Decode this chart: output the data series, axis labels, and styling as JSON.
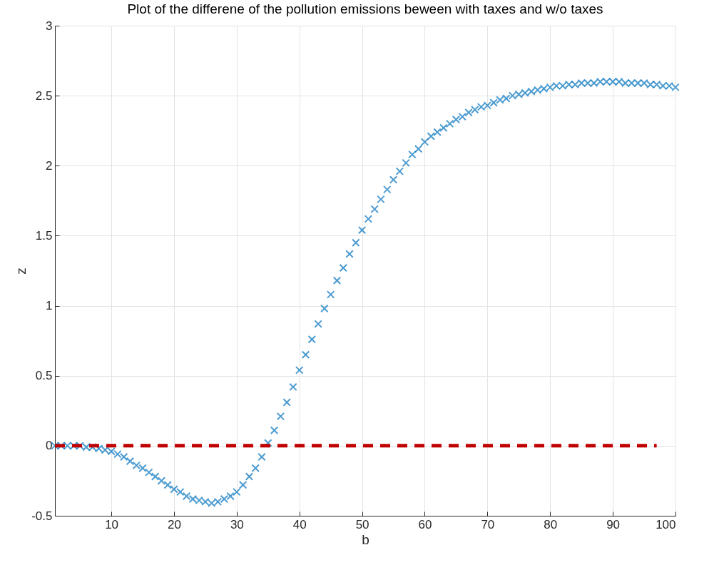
{
  "chart_data": {
    "type": "scatter",
    "title": "Plot of the differene of the pollution emissions beween with taxes and w/o taxes",
    "xlabel": "b",
    "ylabel": "z",
    "x": [
      1,
      2,
      3,
      4,
      5,
      6,
      7,
      8,
      9,
      10,
      11,
      12,
      13,
      14,
      15,
      16,
      17,
      18,
      19,
      20,
      21,
      22,
      23,
      24,
      25,
      26,
      27,
      28,
      29,
      30,
      31,
      32,
      33,
      34,
      35,
      36,
      37,
      38,
      39,
      40,
      41,
      42,
      43,
      44,
      45,
      46,
      47,
      48,
      49,
      50,
      51,
      52,
      53,
      54,
      55,
      56,
      57,
      58,
      59,
      60,
      61,
      62,
      63,
      64,
      65,
      66,
      67,
      68,
      69,
      70,
      71,
      72,
      73,
      74,
      75,
      76,
      77,
      78,
      79,
      80,
      81,
      82,
      83,
      84,
      85,
      86,
      87,
      88,
      89,
      90,
      91,
      92,
      93,
      94,
      95,
      96,
      97,
      98,
      99,
      100
    ],
    "series": [
      {
        "color": "#0072bd",
        "marker": "cross",
        "values": [
          0,
          0,
          0,
          0,
          0,
          -0.01,
          -0.01,
          -0.02,
          -0.03,
          -0.04,
          -0.06,
          -0.08,
          -0.11,
          -0.14,
          -0.16,
          -0.19,
          -0.22,
          -0.25,
          -0.28,
          -0.31,
          -0.33,
          -0.36,
          -0.38,
          -0.39,
          -0.4,
          -0.41,
          -0.4,
          -0.38,
          -0.36,
          -0.33,
          -0.28,
          -0.22,
          -0.16,
          -0.08,
          0.02,
          0.11,
          0.21,
          0.31,
          0.42,
          0.54,
          0.65,
          0.76,
          0.87,
          0.98,
          1.08,
          1.18,
          1.27,
          1.37,
          1.45,
          1.54,
          1.62,
          1.69,
          1.76,
          1.83,
          1.9,
          1.96,
          2.02,
          2.08,
          2.12,
          2.17,
          2.21,
          2.24,
          2.27,
          2.3,
          2.33,
          2.35,
          2.38,
          2.4,
          2.42,
          2.43,
          2.45,
          2.47,
          2.48,
          2.5,
          2.51,
          2.52,
          2.53,
          2.54,
          2.55,
          2.56,
          2.57,
          2.57,
          2.58,
          2.58,
          2.59,
          2.59,
          2.59,
          2.6,
          2.6,
          2.6,
          2.6,
          2.59,
          2.59,
          2.59,
          2.59,
          2.58,
          2.58,
          2.57,
          2.57,
          2.56
        ]
      },
      {
        "type": "line",
        "color": "#c00000",
        "line_style": "dashed",
        "x": [
          1,
          97
        ],
        "values": [
          0,
          0
        ]
      }
    ],
    "xlim": [
      1,
      100
    ],
    "xticks": [
      10,
      20,
      30,
      40,
      50,
      60,
      70,
      80,
      90,
      100
    ],
    "ylim": [
      -0.5,
      3
    ],
    "yticks": [
      -0.5,
      0,
      0.5,
      1,
      1.5,
      2,
      2.5,
      3
    ],
    "grid": true
  }
}
